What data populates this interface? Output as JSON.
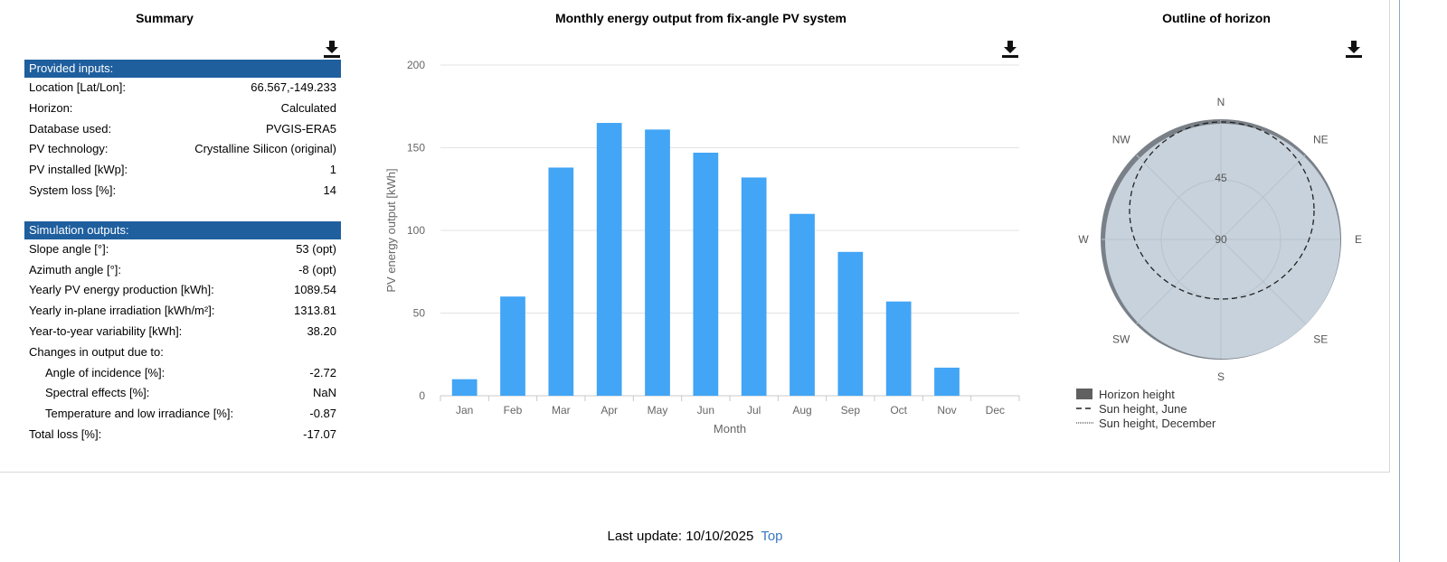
{
  "summary": {
    "title": "Summary",
    "inputs_header": "Provided inputs:",
    "inputs": [
      {
        "label": "Location [Lat/Lon]:",
        "value": "66.567,-149.233"
      },
      {
        "label": "Horizon:",
        "value": "Calculated"
      },
      {
        "label": "Database used:",
        "value": "PVGIS-ERA5"
      },
      {
        "label": "PV technology:",
        "value": "Crystalline Silicon (original)"
      },
      {
        "label": "PV installed [kWp]:",
        "value": "1"
      },
      {
        "label": "System loss [%]:",
        "value": "14"
      }
    ],
    "outputs_header": "Simulation outputs:",
    "outputs": [
      {
        "label": "Slope angle [°]:",
        "value": "53 (opt)"
      },
      {
        "label": "Azimuth angle [°]:",
        "value": "-8 (opt)"
      },
      {
        "label": "Yearly PV energy production [kWh]:",
        "value": "1089.54"
      },
      {
        "label": "Yearly in-plane irradiation [kWh/m²]:",
        "value": "1313.81"
      },
      {
        "label": "Year-to-year variability [kWh]:",
        "value": "38.20"
      },
      {
        "label": "Changes in output due to:",
        "value": ""
      },
      {
        "label": "Angle of incidence [%]:",
        "value": "-2.72",
        "indent": true
      },
      {
        "label": "Spectral effects [%]:",
        "value": "NaN",
        "indent": true
      },
      {
        "label": "Temperature and low irradiance [%]:",
        "value": "-0.87",
        "indent": true
      },
      {
        "label": "Total loss [%]:",
        "value": "-17.07"
      }
    ]
  },
  "chart_data": {
    "type": "bar",
    "title": "Monthly energy output from fix-angle PV system",
    "xlabel": "Month",
    "ylabel": "PV energy output [kWh]",
    "categories": [
      "Jan",
      "Feb",
      "Mar",
      "Apr",
      "May",
      "Jun",
      "Jul",
      "Aug",
      "Sep",
      "Oct",
      "Nov",
      "Dec"
    ],
    "values": [
      10,
      60,
      138,
      165,
      161,
      147,
      132,
      110,
      87,
      57,
      17,
      0
    ],
    "ylim": [
      0,
      200
    ],
    "yticks": [
      0,
      50,
      100,
      150,
      200
    ],
    "grid": true,
    "bar_color": "#42a5f5"
  },
  "horizon": {
    "title": "Outline of horizon",
    "directions": [
      "N",
      "NE",
      "E",
      "SE",
      "S",
      "SW",
      "W",
      "NW"
    ],
    "rings": [
      "45",
      "90"
    ],
    "legend": [
      "Horizon height",
      "Sun height, June",
      "Sun height, December"
    ],
    "fill_color": "#c8d2dc"
  },
  "footer": {
    "last_update": "Last update: 10/10/2025",
    "top_link": "Top"
  },
  "icons": {
    "download": "download-icon"
  }
}
